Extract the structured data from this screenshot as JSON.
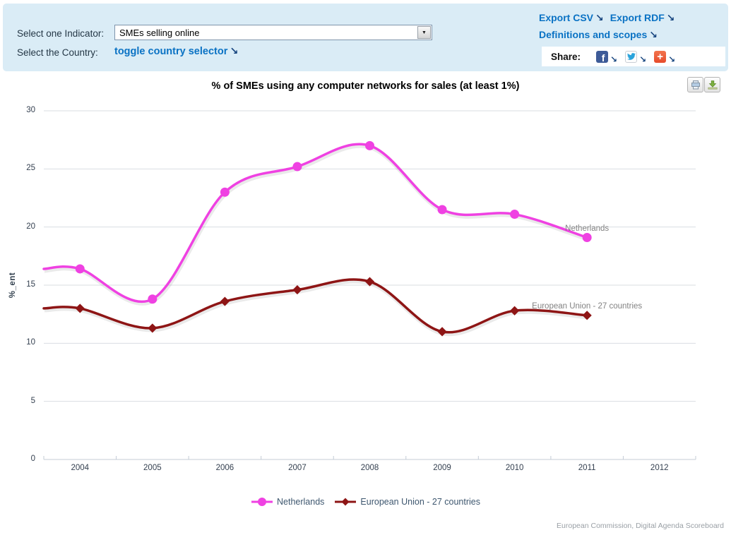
{
  "header": {
    "indicator_label": "Select one Indicator:",
    "indicator_value": "SMEs selling online",
    "country_label": "Select the Country:",
    "toggle_label": "toggle country selector",
    "export_csv": "Export CSV",
    "export_rdf": "Export RDF",
    "definitions": "Definitions and scopes",
    "share_label": "Share:"
  },
  "icons": {
    "arrow_glyph": "↘",
    "select_chevron": "▼",
    "facebook_f": "f",
    "addthis_plus": "+"
  },
  "colors": {
    "topbar_bg": "#daecf6",
    "link_blue": "#0a72c4",
    "netherlands": "#ef41e2",
    "eu27": "#8e1515",
    "gridline": "#d9dde2",
    "axis": "#c4ccd6"
  },
  "chart_data": {
    "type": "line",
    "title": "% of SMEs using any computer networks for sales (at least 1%)",
    "xlabel": "",
    "ylabel": "%_ent",
    "categories": [
      "2004",
      "2005",
      "2006",
      "2007",
      "2008",
      "2009",
      "2010",
      "2011",
      "2012"
    ],
    "yticks": [
      0,
      5,
      10,
      15,
      20,
      25,
      30
    ],
    "ylim": [
      0,
      30
    ],
    "grid": true,
    "legend_position": "bottom",
    "series": [
      {
        "name": "Netherlands",
        "color": "#ef41e2",
        "marker": "circle",
        "values": [
          16.4,
          13.8,
          23.0,
          25.2,
          27.0,
          21.5,
          21.1,
          19.1,
          null
        ]
      },
      {
        "name": "European Union - 27 countries",
        "color": "#8e1515",
        "marker": "diamond",
        "values": [
          13.0,
          11.3,
          13.6,
          14.6,
          15.3,
          11.0,
          12.8,
          12.4,
          null
        ]
      }
    ]
  },
  "footer": {
    "credit": "European Commission, Digital Agenda Scoreboard"
  }
}
